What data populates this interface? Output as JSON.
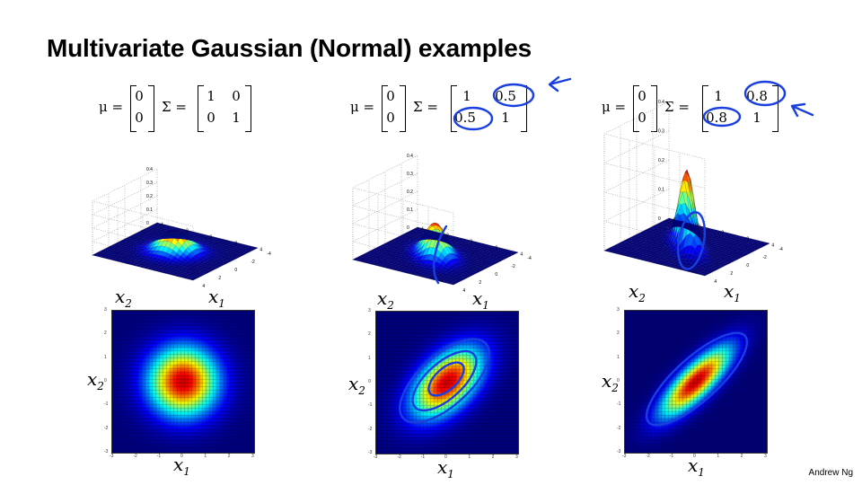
{
  "title": "Multivariate Gaussian (Normal) examples",
  "footer": "Andrew Ng",
  "labels": {
    "mu": "μ =",
    "sigma": "Σ =",
    "x1": "x1",
    "x2": "x2"
  },
  "columns": [
    {
      "mu": [
        "0",
        "0"
      ],
      "sigma": [
        [
          "1",
          "0"
        ],
        [
          "0",
          "1"
        ]
      ],
      "rho": 0.0
    },
    {
      "mu": [
        "0",
        "0"
      ],
      "sigma": [
        [
          "1",
          "0.5"
        ],
        [
          "0.5",
          "1"
        ]
      ],
      "rho": 0.5
    },
    {
      "mu": [
        "0",
        "0"
      ],
      "sigma": [
        [
          "1",
          "0.8"
        ],
        [
          "0.8",
          "1"
        ]
      ],
      "rho": 0.8
    }
  ],
  "surface_ticks": {
    "z": [
      "0.4",
      "0.3",
      "0.2",
      "0.1",
      "0"
    ],
    "xy": [
      "4",
      "2",
      "0",
      "-2",
      "-4"
    ]
  },
  "heatmap_ticks": [
    "-3",
    "-2",
    "-1",
    "0",
    "1",
    "2",
    "3"
  ],
  "colors": {
    "annotation": "#1a3fe0"
  }
}
